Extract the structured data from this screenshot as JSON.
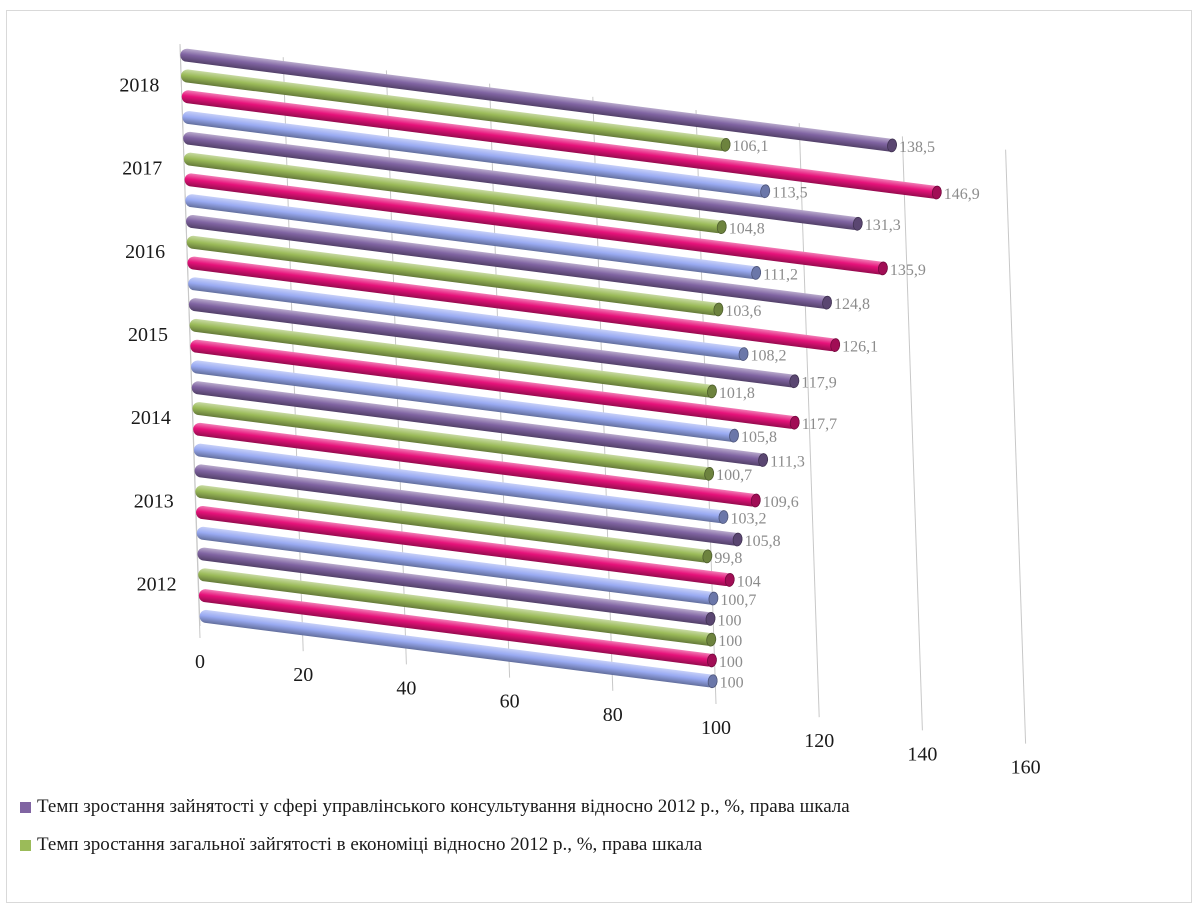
{
  "chart_data": {
    "type": "bar",
    "orientation": "horizontal",
    "title": "",
    "categories": [
      "2012",
      "2013",
      "2014",
      "2015",
      "2016",
      "2017",
      "2018"
    ],
    "x_ticks": [
      "0",
      "20",
      "40",
      "60",
      "80",
      "100",
      "120",
      "140",
      "160"
    ],
    "xlim": [
      0,
      160
    ],
    "grid": true,
    "legend_position": "bottom",
    "series": [
      {
        "name": "Темп зростання зайнятості у сфері управлінського консультування відносно 2012 р., %, права шкала",
        "color": "#8064a2",
        "values": [
          100,
          105.8,
          111.3,
          117.9,
          124.8,
          131.3,
          138.5
        ],
        "labels": [
          "100",
          "105,8",
          "111,3",
          "117,9",
          "124,8",
          "131,3",
          "138,5"
        ]
      },
      {
        "name": "Темп зростання загальної зайгятості в економіці відносно 2012 р., %, права шкала",
        "color": "#9bbb59",
        "values": [
          100,
          99.8,
          100.7,
          101.8,
          103.6,
          104.8,
          106.1
        ],
        "labels": [
          "100",
          "99,8",
          "100,7",
          "101,8",
          "103,6",
          "104,8",
          "106,1"
        ]
      },
      {
        "name": "",
        "color": "#e6127a",
        "values": [
          100,
          104,
          109.6,
          117.7,
          126.1,
          135.9,
          146.9
        ],
        "labels": [
          "100",
          "104",
          "109,6",
          "117,7",
          "126,1",
          "135,9",
          "146,9"
        ]
      },
      {
        "name": "",
        "color": "#99aaf2",
        "values": [
          100,
          100.7,
          103.2,
          105.8,
          108.2,
          111.2,
          113.5
        ],
        "labels": [
          "100",
          "100,7",
          "103,2",
          "105,8",
          "108,2",
          "111,2",
          "113,5"
        ]
      }
    ]
  }
}
